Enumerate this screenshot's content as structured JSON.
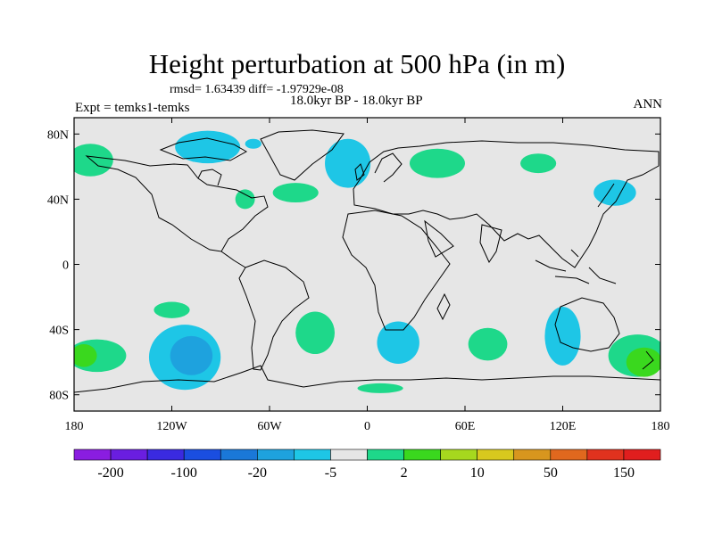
{
  "title": "Height perturbation at 500 hPa (in m)",
  "stats_line": "rmsd= 1.63439 diff= -1.97929e-08",
  "period": "18.0kyr BP - 18.0kyr BP",
  "experiment": "Expt = temks1-temks",
  "season": "ANN",
  "map": {
    "lat_labels": [
      "80N",
      "40N",
      "0",
      "40S",
      "80S"
    ],
    "lat_values": [
      80,
      40,
      0,
      -40,
      -80
    ],
    "lon_labels": [
      "180",
      "120W",
      "60W",
      "0",
      "60E",
      "120E",
      "180"
    ],
    "lon_values": [
      -180,
      -120,
      -60,
      0,
      60,
      120,
      180
    ],
    "background_color": "#e6e6e6"
  },
  "colorbar": {
    "colors": [
      "#8a1de0",
      "#6a1ee0",
      "#3a2ae0",
      "#1a4ee0",
      "#1a78d8",
      "#1ea2de",
      "#1ec6e6",
      "#e6e6e6",
      "#1ed88a",
      "#3ad81e",
      "#a6d81e",
      "#d8c81e",
      "#d8961e",
      "#e0681e",
      "#e0321e",
      "#e01e1e"
    ],
    "labels": [
      "-200",
      "-100",
      "-20",
      "-5",
      "2",
      "10",
      "50",
      "150"
    ]
  },
  "anomalies": [
    {
      "lon": -170,
      "lat": 64,
      "rx": 14,
      "ry": 10,
      "level": 2
    },
    {
      "lon": -98,
      "lat": 72,
      "rx": 20,
      "ry": 10,
      "level": -5
    },
    {
      "lon": -12,
      "lat": 62,
      "rx": 14,
      "ry": 15,
      "level": -5
    },
    {
      "lon": -70,
      "lat": 74,
      "rx": 5,
      "ry": 3,
      "level": -5
    },
    {
      "lon": -44,
      "lat": 44,
      "rx": 14,
      "ry": 6,
      "level": 2
    },
    {
      "lon": -75,
      "lat": 40,
      "rx": 6,
      "ry": 6,
      "level": 2
    },
    {
      "lon": 43,
      "lat": 62,
      "rx": 17,
      "ry": 9,
      "level": 2
    },
    {
      "lon": 105,
      "lat": 62,
      "rx": 11,
      "ry": 6,
      "level": 2
    },
    {
      "lon": 152,
      "lat": 44,
      "rx": 13,
      "ry": 8,
      "level": -5
    },
    {
      "lon": -120,
      "lat": -28,
      "rx": 11,
      "ry": 5,
      "level": 2
    },
    {
      "lon": -32,
      "lat": -42,
      "rx": 12,
      "ry": 13,
      "level": 2
    },
    {
      "lon": 19,
      "lat": -48,
      "rx": 13,
      "ry": 13,
      "level": -5
    },
    {
      "lon": 74,
      "lat": -49,
      "rx": 12,
      "ry": 10,
      "level": 2
    },
    {
      "lon": 120,
      "lat": -44,
      "rx": 11,
      "ry": 18,
      "level": -5
    },
    {
      "lon": -112,
      "lat": -57,
      "rx": 22,
      "ry": 20,
      "level": -5
    },
    {
      "lon": -108,
      "lat": -56,
      "rx": 13,
      "ry": 12,
      "level": -20
    },
    {
      "lon": -166,
      "lat": -56,
      "rx": 18,
      "ry": 10,
      "level": 2
    },
    {
      "lon": -174,
      "lat": -56,
      "rx": 8,
      "ry": 7,
      "level": 10
    },
    {
      "lon": 166,
      "lat": -56,
      "rx": 18,
      "ry": 13,
      "level": 2
    },
    {
      "lon": 170,
      "lat": -60,
      "rx": 11,
      "ry": 9,
      "level": 10
    },
    {
      "lon": 8,
      "lat": -76,
      "rx": 14,
      "ry": 3,
      "level": 2
    }
  ]
}
